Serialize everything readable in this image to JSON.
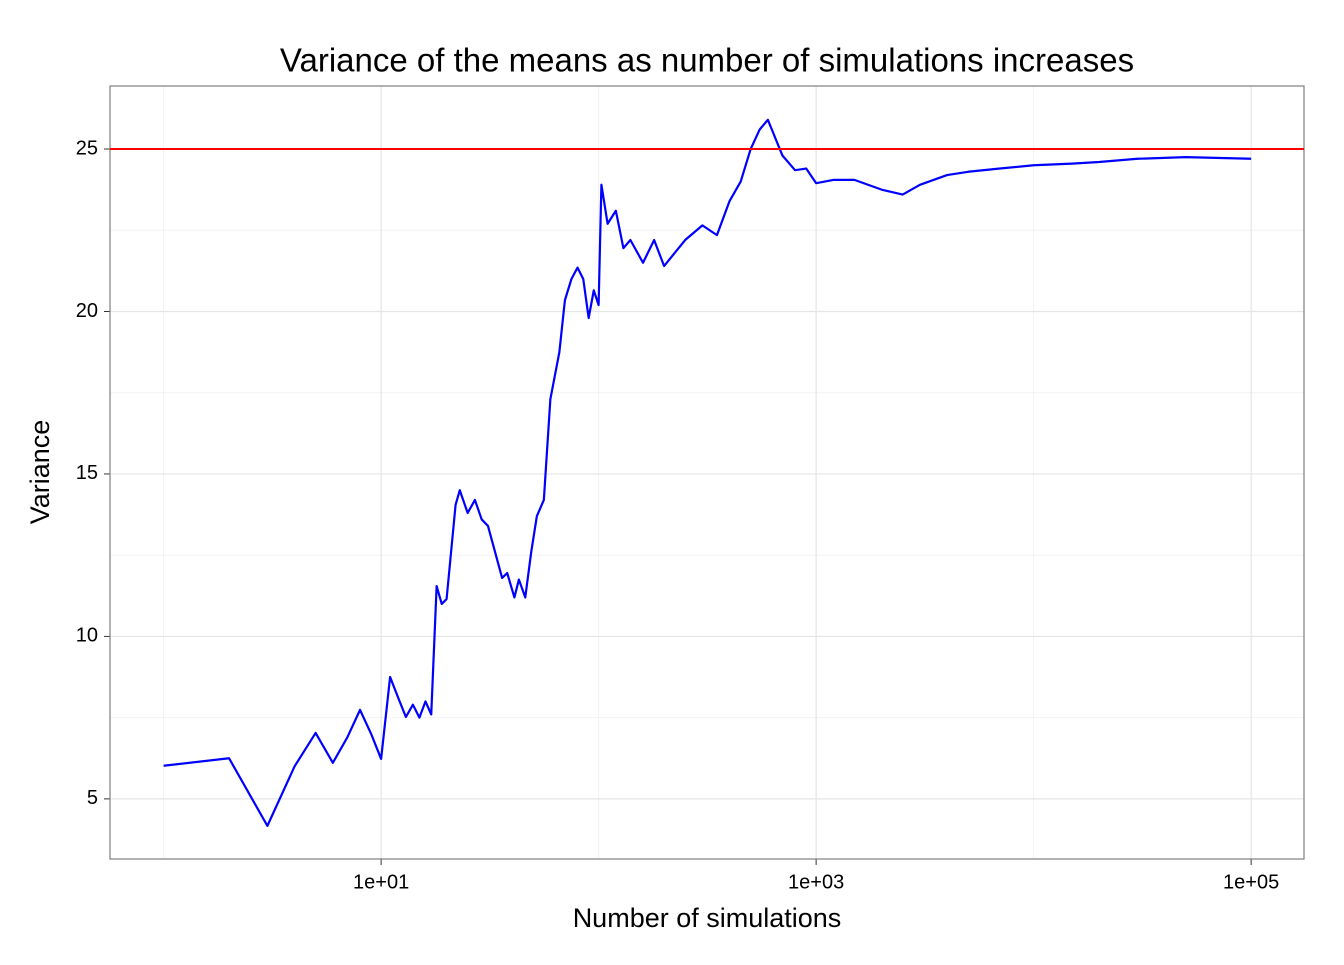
{
  "chart_data": {
    "type": "line",
    "title": "Variance of the means as number of simulations increases",
    "x_label": "Number of simulations",
    "y_label": "Variance",
    "x_scale": "log",
    "color": "#0000ff",
    "x": [
      1,
      2,
      3,
      4,
      5,
      6,
      7,
      8,
      9,
      10,
      11,
      12,
      13,
      14,
      15,
      16,
      17,
      18,
      19,
      20,
      22,
      23,
      25,
      27,
      29,
      31,
      36,
      38,
      41,
      43,
      46,
      49,
      52,
      56,
      60,
      66,
      70,
      75,
      80,
      85,
      90,
      95,
      100,
      103,
      110,
      120,
      130,
      140,
      160,
      180,
      200,
      250,
      300,
      350,
      400,
      450,
      500,
      550,
      600,
      700,
      800,
      900,
      1000,
      1200,
      1500,
      2000,
      2500,
      3000,
      4000,
      5000,
      7000,
      10000,
      15000,
      20000,
      30000,
      50000,
      100000
    ],
    "values": [
      6.02,
      6.25,
      4.17,
      6.0,
      7.03,
      6.11,
      6.9,
      7.74,
      7.0,
      6.23,
      8.75,
      8.1,
      7.52,
      7.9,
      7.5,
      8.0,
      7.6,
      11.55,
      11.0,
      11.15,
      14.05,
      14.5,
      13.8,
      14.2,
      13.6,
      13.4,
      11.8,
      11.95,
      11.2,
      11.75,
      11.2,
      12.6,
      13.7,
      14.2,
      17.3,
      18.75,
      20.35,
      21.0,
      21.35,
      21.0,
      19.8,
      20.65,
      20.2,
      23.9,
      22.7,
      23.1,
      21.95,
      22.2,
      21.5,
      22.2,
      21.4,
      22.2,
      22.65,
      22.35,
      23.4,
      24.0,
      25.0,
      25.6,
      25.9,
      24.8,
      24.35,
      24.4,
      23.95,
      24.05,
      24.05,
      23.75,
      23.6,
      23.9,
      24.2,
      24.3,
      24.4,
      24.5,
      24.55,
      24.6,
      24.7,
      24.75,
      24.7
    ],
    "xlim": [
      0.567,
      175000
    ],
    "ylim": [
      3.15,
      26.94
    ],
    "xticks": [
      {
        "value": 10,
        "label": "1e+01"
      },
      {
        "value": 1000,
        "label": "1e+03"
      },
      {
        "value": 100000,
        "label": "1e+05"
      }
    ],
    "yticks": [
      5,
      10,
      15,
      20,
      25
    ],
    "x_minor_grid": [
      1,
      100,
      10000
    ],
    "y_minor_grid": [
      7.5,
      12.5,
      17.5,
      22.5
    ],
    "grid": true,
    "hline": {
      "value": 25,
      "color": "#ff0000"
    }
  }
}
